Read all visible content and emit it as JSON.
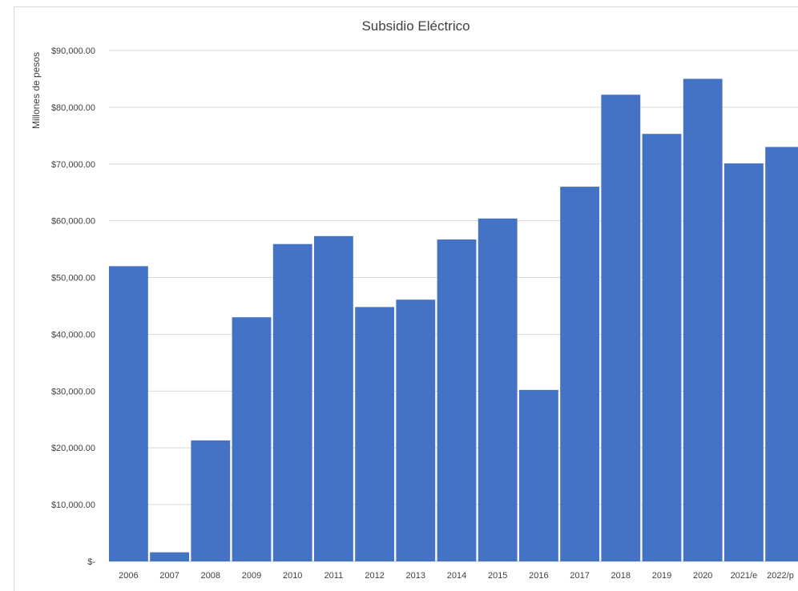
{
  "chart_data": {
    "type": "bar",
    "title": "Subsidio Eléctrico",
    "xlabel": "",
    "ylabel": "Millones de pesos",
    "categories": [
      "2006",
      "2007",
      "2008",
      "2009",
      "2010",
      "2011",
      "2012",
      "2013",
      "2014",
      "2015",
      "2016",
      "2017",
      "2018",
      "2019",
      "2020",
      "2021/e",
      "2022/p"
    ],
    "values": [
      52000,
      1600,
      21300,
      43000,
      55900,
      57300,
      44800,
      46100,
      56700,
      60400,
      30200,
      66000,
      82200,
      75300,
      85000,
      70100,
      73000
    ],
    "ylim": [
      0,
      90000
    ],
    "yticks": [
      0,
      10000,
      20000,
      30000,
      40000,
      50000,
      60000,
      70000,
      80000,
      90000
    ],
    "ytick_labels": [
      "$-",
      "$10,000.00",
      "$20,000.00",
      "$30,000.00",
      "$40,000.00",
      "$50,000.00",
      "$60,000.00",
      "$70,000.00",
      "$80,000.00",
      "$90,000.00"
    ],
    "bar_color": "#4472c4",
    "grid": true,
    "legend": "none"
  }
}
